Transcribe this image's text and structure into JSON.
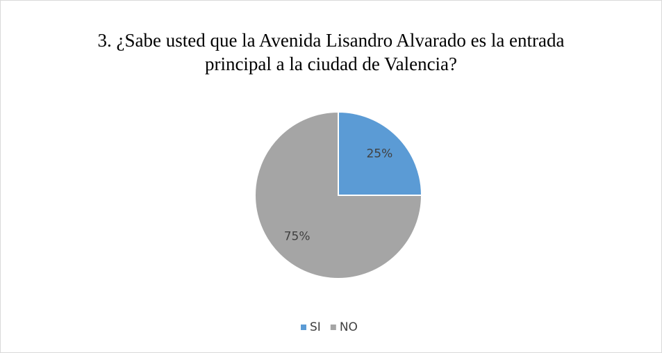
{
  "chart_data": {
    "type": "pie",
    "title": "3. ¿Sabe usted que la Avenida Lisandro Alvarado es la entrada principal a la ciudad de Valencia?",
    "categories": [
      "SI",
      "NO"
    ],
    "values": [
      25,
      75
    ],
    "value_labels": [
      "25%",
      "75%"
    ],
    "colors": [
      "#5b9bd5",
      "#a5a5a5"
    ],
    "legend": "bottom"
  }
}
